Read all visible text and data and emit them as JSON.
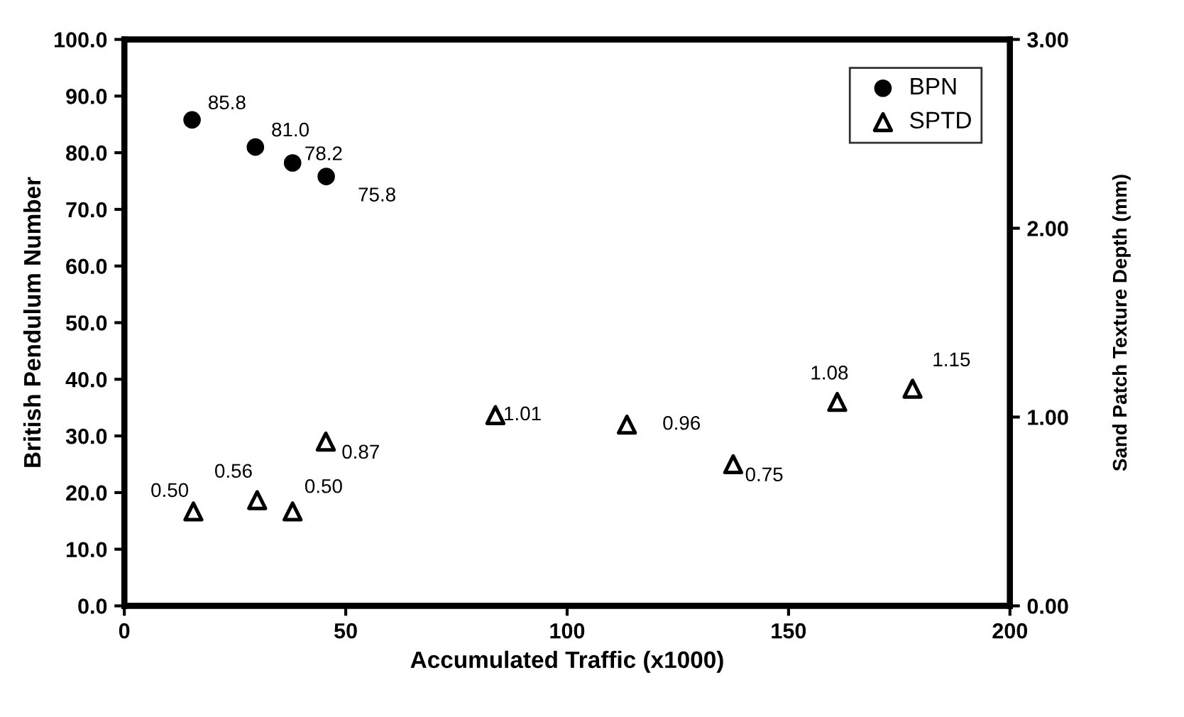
{
  "chart_data": {
    "type": "scatter",
    "xlabel": "Accumulated Traffic (x1000)",
    "ylabel": "British Pendulum Number",
    "y2label": "Sand Patch Texture Depth (mm)",
    "xlim": [
      0,
      200
    ],
    "xticks": [
      0,
      50,
      100,
      150,
      200
    ],
    "ylim": [
      0,
      100
    ],
    "yticks": [
      {
        "value": 0,
        "label": "0.0"
      },
      {
        "value": 10,
        "label": "10.0"
      },
      {
        "value": 20,
        "label": "20.0"
      },
      {
        "value": 30,
        "label": "30.0"
      },
      {
        "value": 40,
        "label": "40.0"
      },
      {
        "value": 50,
        "label": "50.0"
      },
      {
        "value": 60,
        "label": "60.0"
      },
      {
        "value": 70,
        "label": "70.0"
      },
      {
        "value": 80,
        "label": "80.0"
      },
      {
        "value": 90,
        "label": "90.0"
      },
      {
        "value": 100,
        "label": "100.0"
      }
    ],
    "y2lim": [
      0,
      3
    ],
    "y2ticks": [
      {
        "value": 0,
        "label": "0.00"
      },
      {
        "value": 1,
        "label": "1.00"
      },
      {
        "value": 2,
        "label": "2.00"
      },
      {
        "value": 3,
        "label": "3.00"
      }
    ],
    "legend": "top right",
    "grid": false,
    "series": [
      {
        "name": "BPN",
        "color": "#000000",
        "marker": "circle",
        "x": [
          15.3,
          29.6,
          38,
          45.6
        ],
        "values": [
          85.8,
          81.0,
          78.2,
          75.8
        ],
        "value_labels": [
          "85.8",
          "81.0",
          "78.2",
          "75.8"
        ]
      },
      {
        "name": "SPTD",
        "color": "#000000",
        "marker": "triangle",
        "axis": "y2",
        "x": [
          15.6,
          30,
          38,
          45.5,
          83.8,
          113.5,
          137.5,
          161,
          178
        ],
        "values": [
          0.5,
          0.56,
          0.5,
          0.87,
          1.01,
          0.96,
          0.75,
          1.08,
          1.15
        ],
        "value_labels": [
          "0.50",
          "0.56",
          "0.50",
          "0.87",
          "1.01",
          "0.96",
          "0.75",
          "1.08",
          "1.15"
        ]
      }
    ]
  }
}
